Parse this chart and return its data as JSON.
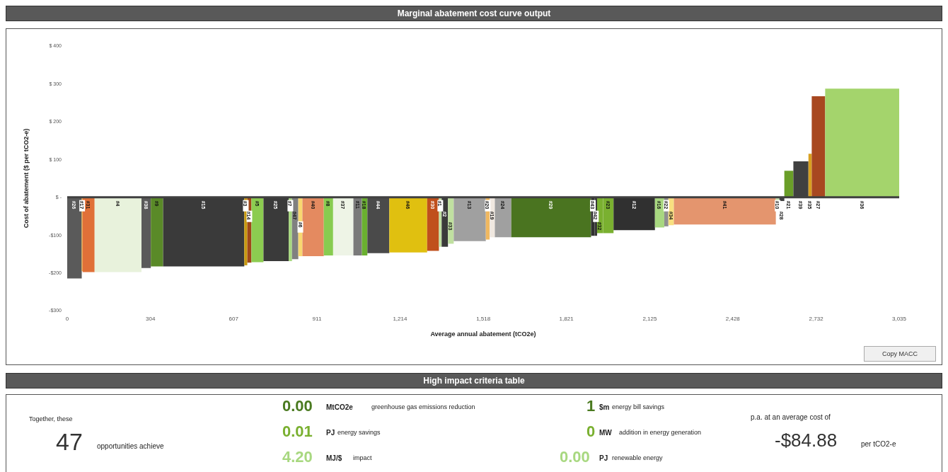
{
  "chart_data": [
    {
      "type": "histogram",
      "title": "Marginal abatement cost curve output",
      "xlabel": "Average annual abatement (tCO2e)",
      "ylabel": "Cost of abatement ($ per tCO2-e)",
      "bins": [
        0,
        53,
        56,
        100,
        271,
        305,
        350,
        646,
        657,
        672,
        716,
        808,
        820,
        843,
        858,
        936,
        970,
        1044,
        1075,
        1095,
        1175,
        1313,
        1356,
        1366,
        1389,
        1410,
        1527,
        1541,
        1560,
        1620,
        1911,
        1924,
        1933,
        1955,
        1993,
        2144,
        2178,
        2193,
        2213,
        2585,
        2598,
        2616,
        2649,
        2704,
        2716,
        2765,
        3035
      ],
      "values": [
        -215,
        -195,
        -198,
        -198,
        -187,
        -183,
        -183,
        -180,
        -173,
        -172,
        -169,
        -169,
        -164,
        -156,
        -156,
        -154,
        -154,
        -154,
        -154,
        -148,
        -146,
        -142,
        -131,
        -131,
        -123,
        -116,
        -112,
        -106,
        -106,
        -106,
        -102,
        -102,
        -95,
        -95,
        -87,
        -80,
        -77,
        -74,
        -72,
        -10,
        -10,
        70,
        95,
        115,
        267,
        287
      ],
      "categories": [
        "#26",
        "#17",
        "#31",
        "#4",
        "#38",
        "#9",
        "#15",
        "#3",
        "#14",
        "#5",
        "#25",
        "#7",
        "#47",
        "#6",
        "#40",
        "#8",
        "#37",
        "#11",
        "#18",
        "#44",
        "#46",
        "#30",
        "#1",
        "#2",
        "#33",
        "#13",
        "#20",
        "#19",
        "#24",
        "#29",
        "#43",
        "#42",
        "#32",
        "#23",
        "#12",
        "#16",
        "#22",
        "#34",
        "#41",
        "#10",
        "#28",
        "#21",
        "#39",
        "#35",
        "#27",
        "#36"
      ],
      "colors": [
        "#5a5a5a",
        "#e8a020",
        "#e07038",
        "#e8f2dc",
        "#5a5a5a",
        "#5a8a28",
        "#3a3a3a",
        "#c89a10",
        "#a04818",
        "#8ccc50",
        "#3a3a3a",
        "#a8d880",
        "#808080",
        "#f8d870",
        "#e48a60",
        "#88cc50",
        "#eef4e6",
        "#7a7a7a",
        "#6ab030",
        "#4a4a4a",
        "#e0c010",
        "#c0501c",
        "#c0e0a0",
        "#3a3a3a",
        "#c0e0a0",
        "#a0a0a0",
        "#f0b860",
        "#f0e8e0",
        "#a0a0a0",
        "#4a7420",
        "#303030",
        "#383838",
        "#7ab030",
        "#7ab030",
        "#303030",
        "#a8d880",
        "#909090",
        "#f8e080",
        "#e4956e",
        "#c8e4b0",
        "#404040",
        "#6a9e28",
        "#404040",
        "#d8a020",
        "#a84820",
        "#a4d46c"
      ],
      "xlim": [
        0,
        3035
      ],
      "xticks": [
        0,
        304,
        607,
        911,
        {
          "value": 1214,
          "label": "1,214"
        },
        {
          "value": 1518,
          "label": "1,518"
        },
        {
          "value": 1821,
          "label": "1,821"
        },
        {
          "value": 2125,
          "label": "2,125"
        },
        {
          "value": 2428,
          "label": "2,428"
        },
        {
          "value": 2732,
          "label": "2,732"
        },
        {
          "value": 3035,
          "label": "3,035"
        }
      ],
      "ylim": [
        -300,
        400
      ],
      "yticks": [
        {
          "value": -300,
          "label": "-$300"
        },
        {
          "value": -200,
          "label": "-$200"
        },
        {
          "value": -100,
          "label": "-$100"
        },
        {
          "value": 0,
          "label": "$ -"
        },
        {
          "value": 100,
          "label": "$ 100"
        },
        {
          "value": 200,
          "label": "$ 200"
        },
        {
          "value": 300,
          "label": "$ 300"
        },
        {
          "value": 400,
          "label": "$ 400"
        }
      ],
      "ref_lines": [
        {
          "axis": "y",
          "value": 0,
          "color": "#404040"
        }
      ],
      "annotations": [
        "Copy MACC"
      ]
    },
    {
      "type": "other",
      "title": "High impact criteria table",
      "annotations": [
        "Together, these",
        "47",
        "opportunities achieve",
        "0.00",
        "MtCO2e",
        "greenhouse gas emissions reduction",
        "0.01",
        "PJ",
        "energy savings",
        "4.20",
        "MJ/$",
        "impact",
        "1",
        "$m",
        "energy bill savings",
        "0",
        "MW",
        "addition in energy generation",
        "0.00",
        "PJ",
        "renewable energy",
        "p.a. at an average cost of",
        "-$84.88",
        "per tCO2-e"
      ]
    }
  ]
}
